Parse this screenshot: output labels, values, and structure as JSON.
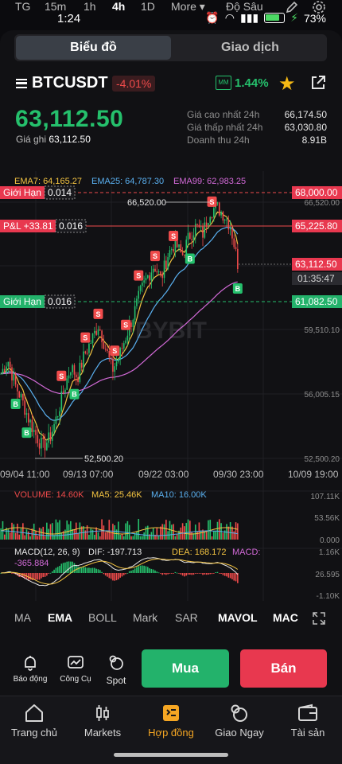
{
  "status": {
    "time": "1:24",
    "battery": "73%"
  },
  "segment": {
    "chart": "Biểu đồ",
    "trade": "Giao dịch"
  },
  "pair": {
    "symbol": "BTCUSDT",
    "change": "-4.01%",
    "mm_label": "MM",
    "mm_pct": "1.44%"
  },
  "price": {
    "last": "63,112.50",
    "mark_label": "Giá ghi",
    "mark_value": "63,112.50"
  },
  "stats": [
    {
      "label": "Giá cao nhất 24h",
      "value": "66,174.50"
    },
    {
      "label": "Giá thấp nhất 24h",
      "value": "63,030.80"
    },
    {
      "label": "Doanh thu 24h",
      "value": "8.91B"
    }
  ],
  "timeframes": [
    "TG",
    "15m",
    "1h",
    "4h",
    "1D",
    "More",
    "Độ Sâu"
  ],
  "timeframe_active": "4h",
  "ema": {
    "ema7": "EMA7: 64,165.27",
    "ema25": "EMA25: 64,787.30",
    "ema99": "EMA99: 62,983.25"
  },
  "orders": {
    "limit_top_label": "Giới Hạn",
    "limit_top_qty": "0.014",
    "limit_top_price": "68,000.00",
    "pnl_label": "P&L +33.81",
    "pnl_qty": "0.016",
    "pnl_price": "65,225.80",
    "limit_bot_label": "Giới Hạn",
    "limit_bot_qty": "0.016",
    "limit_bot_price": "61,082.50"
  },
  "last_tag": {
    "price": "63,112.50",
    "countdown": "01:35:47"
  },
  "annotations": {
    "high": "66,520.00",
    "low": "52,500.20"
  },
  "watermark": "BYBIT",
  "colors": {
    "up": "#25c06c",
    "down": "#f04b4b",
    "ema7": "#f5c542",
    "ema25": "#5ab0f0",
    "ema99": "#d36ad8"
  },
  "chart_data": {
    "type": "candlestick",
    "y_ticks": [
      "66,520.00",
      "59,510.10",
      "56,005.15",
      "52,500.20"
    ],
    "x_ticks": [
      "09/04 11:00",
      "09/13 07:00",
      "09/22 03:00",
      "09/30 23:00",
      "10/09 19:00"
    ],
    "ylim": [
      52000,
      67000
    ],
    "close_path": [
      56800,
      57600,
      56200,
      55300,
      54200,
      53300,
      52600,
      53100,
      54300,
      55800,
      57200,
      56600,
      57900,
      58700,
      59600,
      58300,
      57000,
      57800,
      59000,
      60100,
      61400,
      62300,
      63000,
      62200,
      63600,
      64300,
      63500,
      64600,
      65200,
      64800,
      66100,
      66300,
      65900,
      65200,
      63100
    ],
    "volume": {
      "labels": [
        "VOLUME: 14.60K",
        "MA5: 25.46K",
        "MA10: 16.00K"
      ],
      "y_ticks": [
        "107.11K",
        "53.56K",
        "0.000"
      ]
    },
    "macd": {
      "labels": [
        "MACD(12, 26, 9)",
        "DIF: -197.713",
        "DEA: 168.172",
        "MACD:",
        "-365.884"
      ],
      "y_ticks": [
        "1.16K",
        "26.595",
        "-1.10K"
      ]
    }
  },
  "indicators": [
    "MA",
    "EMA",
    "BOLL",
    "Mark",
    "SAR",
    "MAVOL",
    "MAC"
  ],
  "indicator_active": "EMA",
  "tools": [
    "Báo động",
    "Công Cụ",
    "Spot"
  ],
  "actions": {
    "buy": "Mua",
    "sell": "Bán"
  },
  "nav": [
    "Trang chủ",
    "Markets",
    "Hợp đồng",
    "Giao Ngay",
    "Tài sản"
  ],
  "nav_active": "Hợp đồng"
}
